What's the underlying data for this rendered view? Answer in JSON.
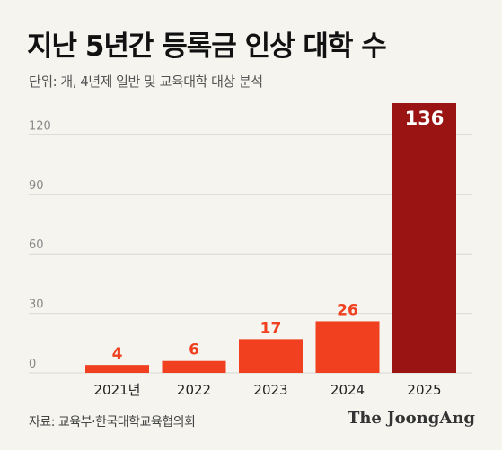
{
  "title": "지난 5년간 등록금 인상 대학 수",
  "unit_note": "단위: 개, 4년제 일반 및 교육대학 대상 분석",
  "source": "자료: 교육부·한국대학교육협의회",
  "brand": "The JoongAng",
  "colors": {
    "bar": "#f0401f",
    "highlight": "#9b1414",
    "grid": "#d8d8d4",
    "axis_text": "#888888",
    "label_text": "#222222",
    "background": "#f5f4ef"
  },
  "chart_data": {
    "type": "bar",
    "title": "지난 5년간 등록금 인상 대학 수",
    "categories": [
      "2021년",
      "2022",
      "2023",
      "2024",
      "2025"
    ],
    "values": [
      4,
      6,
      17,
      26,
      136
    ],
    "yticks": [
      "0",
      "30",
      "60",
      "90",
      "120"
    ],
    "ylim": [
      0,
      136
    ],
    "grid": true,
    "highlight_index": 4
  }
}
